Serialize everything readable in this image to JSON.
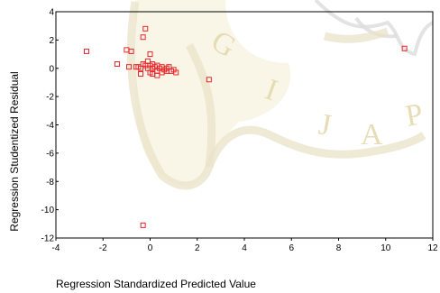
{
  "chart_data": {
    "type": "scatter",
    "title": "",
    "xlabel": "Regression Standardized Predicted Value",
    "ylabel": "Regression Studentized Residual",
    "xlim": [
      -4,
      12
    ],
    "ylim": [
      -12,
      4
    ],
    "xticks": [
      -4,
      -2,
      0,
      2,
      4,
      6,
      8,
      10,
      12
    ],
    "yticks": [
      4,
      2,
      0,
      -2,
      -4,
      -6,
      -8,
      -10,
      -12
    ],
    "grid": false,
    "marker": "hollow-square",
    "color": "#e8252b",
    "points": [
      [
        -2.7,
        1.2
      ],
      [
        -1.4,
        0.3
      ],
      [
        -1.0,
        1.3
      ],
      [
        -0.9,
        0.1
      ],
      [
        -0.8,
        1.2
      ],
      [
        -0.6,
        0.1
      ],
      [
        -0.5,
        0.1
      ],
      [
        -0.4,
        0.0
      ],
      [
        -0.4,
        -0.4
      ],
      [
        -0.3,
        2.2
      ],
      [
        -0.3,
        0.3
      ],
      [
        -0.2,
        2.8
      ],
      [
        -0.2,
        0.2
      ],
      [
        -0.1,
        0.5
      ],
      [
        -0.1,
        0.0
      ],
      [
        0.0,
        1.0
      ],
      [
        0.0,
        0.2
      ],
      [
        0.0,
        -0.3
      ],
      [
        0.1,
        0.3
      ],
      [
        0.1,
        0.0
      ],
      [
        0.1,
        -0.4
      ],
      [
        0.2,
        0.1
      ],
      [
        0.3,
        0.2
      ],
      [
        0.3,
        -0.2
      ],
      [
        0.4,
        0.0
      ],
      [
        0.5,
        0.1
      ],
      [
        0.5,
        -0.3
      ],
      [
        0.6,
        -0.1
      ],
      [
        0.7,
        -0.2
      ],
      [
        0.7,
        0.0
      ],
      [
        0.8,
        0.1
      ],
      [
        0.9,
        -0.2
      ],
      [
        1.0,
        -0.1
      ],
      [
        1.1,
        -0.3
      ],
      [
        0.3,
        -0.5
      ],
      [
        2.5,
        -0.8
      ],
      [
        10.8,
        1.4
      ],
      [
        -0.3,
        -11.1
      ]
    ]
  },
  "watermark": {
    "letters": [
      "G",
      "I",
      "J",
      "A",
      "P"
    ],
    "colors": {
      "gold": "#e2d8aa",
      "gray": "#dcdcdc"
    }
  }
}
